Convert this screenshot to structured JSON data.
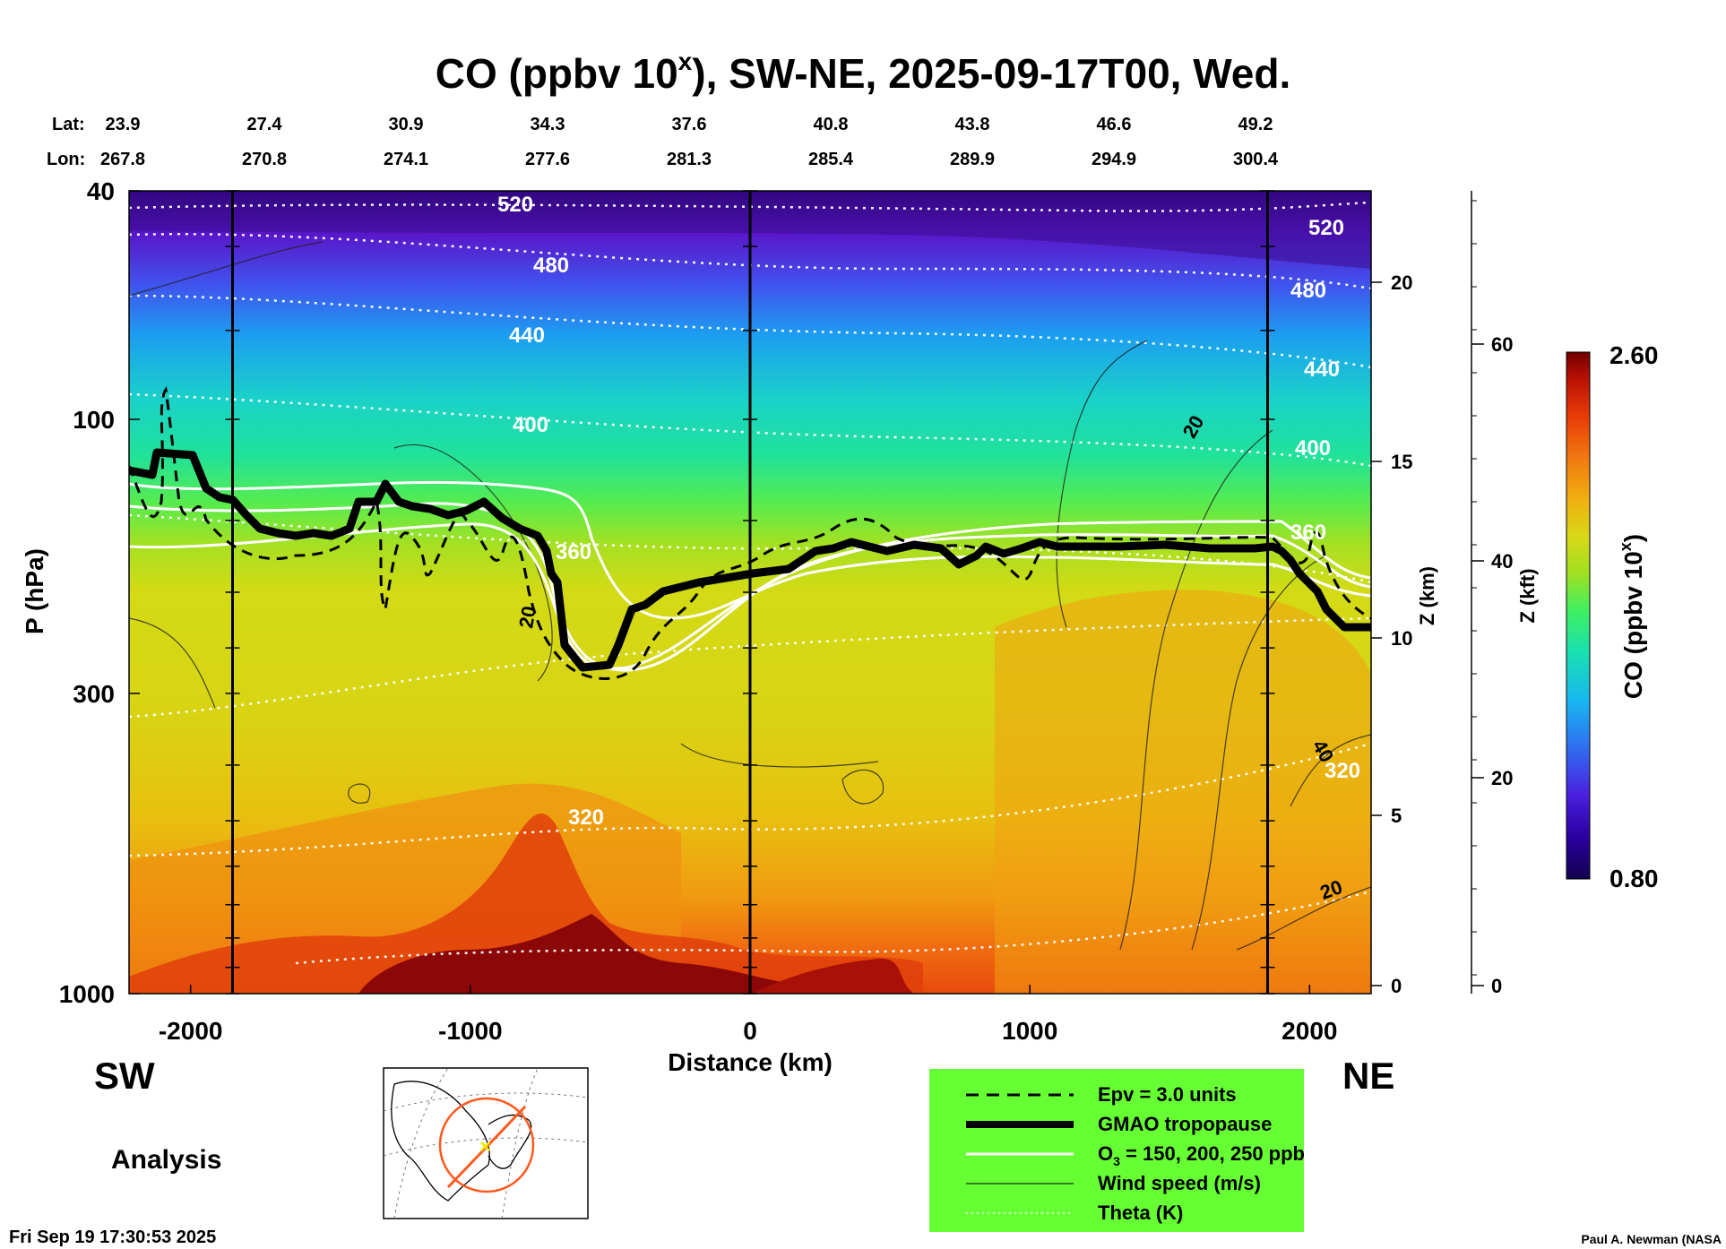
{
  "chart_data": {
    "type": "heatmap",
    "title": "CO (ppbv 10",
    "title_sup": "x",
    "title_suffix": "), SW-NE, 2025-09-17T00, Wed.",
    "lat_label": "Lat:",
    "lon_label": "Lon:",
    "lat_values": [
      "23.9",
      "27.4",
      "30.9",
      "34.3",
      "37.6",
      "40.8",
      "43.8",
      "46.6",
      "49.2"
    ],
    "lon_values": [
      "267.8",
      "270.8",
      "274.1",
      "277.6",
      "281.3",
      "285.4",
      "289.9",
      "294.9",
      "300.4"
    ],
    "xlabel": "Distance (km)",
    "xlim": [
      -2220,
      2220
    ],
    "xticks": [
      -2000,
      -1000,
      0,
      1000,
      2000
    ],
    "xtick_labels": [
      "-2000",
      "-1000",
      "0",
      "1000",
      "2000"
    ],
    "ylabel": "P (hPa)",
    "y_scale": "log",
    "ylim": [
      1000,
      40
    ],
    "yticks": [
      1000,
      300,
      100,
      40
    ],
    "ytick_labels": [
      "1000",
      "300",
      "100",
      "40"
    ],
    "z_km_label": "Z (km)",
    "z_km_ticks": [
      "0",
      "5",
      "10",
      "15",
      "20"
    ],
    "z_kft_label": "Z (kft)",
    "z_kft_ticks": [
      "0",
      "20",
      "40",
      "60"
    ],
    "vertical_lines_km": [
      -1850,
      0,
      1850
    ],
    "colorbar": {
      "label": "CO (ppbv 10",
      "label_sup": "x",
      "label_suffix": ")",
      "min": 0.8,
      "max": 2.6,
      "min_label": "0.80",
      "max_label": "2.60",
      "colors": [
        "#120050",
        "#2a00a0",
        "#4a20e0",
        "#2f6ff0",
        "#18b8f0",
        "#18e0b0",
        "#40f060",
        "#a0e020",
        "#d8d818",
        "#f0b010",
        "#f07810",
        "#e83a08",
        "#b81004",
        "#700000"
      ]
    },
    "theta_labels": [
      "520",
      "480",
      "440",
      "400",
      "360",
      "320"
    ],
    "wind_labels": [
      "20",
      "20",
      "40",
      "20"
    ],
    "direction_left": "SW",
    "direction_right": "NE",
    "analysis_label": "Analysis",
    "timestamp": "Fri Sep 19 17:30:53 2025",
    "credit": "Paul A. Newman (NASA",
    "legend": {
      "background": "#66ff33",
      "items": [
        {
          "label": "Epv = 3.0 units",
          "style": "dashed"
        },
        {
          "label": "GMAO tropopause",
          "style": "thick"
        },
        {
          "label": "O",
          "sub": "3",
          "suffix": " = 150, 200, 250 ppb",
          "style": "white"
        },
        {
          "label": "Wind speed (m/s)",
          "style": "thin"
        },
        {
          "label": "Theta (K)",
          "style": "dotted"
        }
      ]
    }
  }
}
